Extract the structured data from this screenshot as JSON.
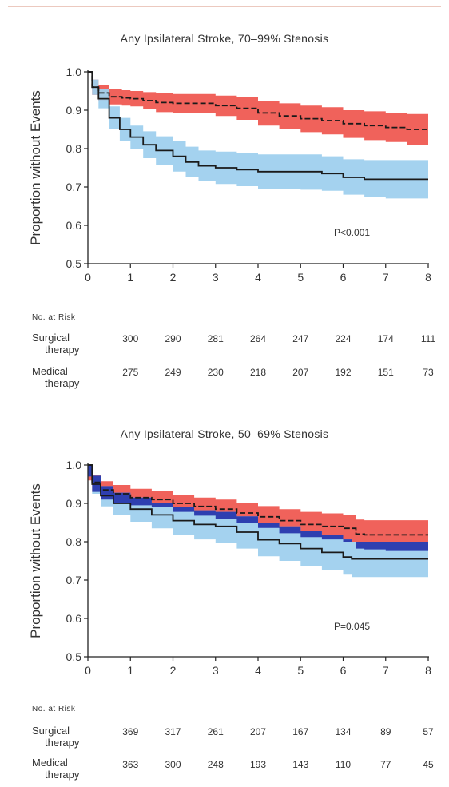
{
  "chart_data": [
    {
      "type": "line",
      "title": "Any Ipsilateral Stroke, 70–99% Stenosis",
      "ylabel": "Proportion without Events",
      "xlabel": "",
      "xlim": [
        0,
        8
      ],
      "ylim": [
        0.5,
        1.0
      ],
      "x_ticks": [
        "0",
        "1",
        "2",
        "3",
        "4",
        "5",
        "6",
        "7",
        "8"
      ],
      "y_ticks": [
        "0.5",
        "0.6",
        "0.7",
        "0.8",
        "0.9",
        "1.0"
      ],
      "annotation": "P<0.001",
      "series": [
        {
          "style": "dashed",
          "color": "#1a1a1a",
          "band_color": "#ef5a52",
          "x": [
            0,
            0.1,
            0.25,
            0.5,
            0.8,
            1.0,
            1.3,
            1.6,
            2.0,
            2.5,
            3.0,
            3.5,
            4.0,
            4.5,
            5.0,
            5.5,
            6.0,
            6.5,
            7.0,
            7.5,
            8.0
          ],
          "y": [
            1.0,
            0.96,
            0.945,
            0.935,
            0.932,
            0.93,
            0.925,
            0.92,
            0.918,
            0.918,
            0.912,
            0.905,
            0.893,
            0.885,
            0.878,
            0.873,
            0.865,
            0.86,
            0.855,
            0.85,
            0.85
          ],
          "lower": [
            1.0,
            0.94,
            0.925,
            0.915,
            0.912,
            0.91,
            0.902,
            0.895,
            0.893,
            0.892,
            0.885,
            0.875,
            0.86,
            0.85,
            0.843,
            0.837,
            0.828,
            0.822,
            0.817,
            0.81,
            0.81
          ],
          "upper": [
            1.0,
            0.98,
            0.965,
            0.955,
            0.952,
            0.95,
            0.947,
            0.944,
            0.942,
            0.942,
            0.938,
            0.934,
            0.924,
            0.918,
            0.912,
            0.908,
            0.9,
            0.897,
            0.893,
            0.89,
            0.89
          ]
        },
        {
          "style": "solid",
          "color": "#1a1a1a",
          "band_color": "#9fd0ee",
          "x": [
            0,
            0.1,
            0.25,
            0.5,
            0.75,
            1.0,
            1.3,
            1.6,
            2.0,
            2.3,
            2.6,
            3.0,
            3.5,
            4.0,
            4.5,
            5.0,
            5.5,
            6.0,
            6.5,
            7.0,
            7.5,
            8.0
          ],
          "y": [
            1.0,
            0.96,
            0.93,
            0.88,
            0.85,
            0.83,
            0.81,
            0.795,
            0.78,
            0.765,
            0.755,
            0.75,
            0.745,
            0.74,
            0.74,
            0.74,
            0.735,
            0.725,
            0.72,
            0.72,
            0.72,
            0.72
          ],
          "lower": [
            1.0,
            0.94,
            0.905,
            0.85,
            0.82,
            0.8,
            0.775,
            0.758,
            0.74,
            0.725,
            0.715,
            0.708,
            0.702,
            0.695,
            0.694,
            0.693,
            0.69,
            0.68,
            0.675,
            0.67,
            0.67,
            0.67
          ],
          "upper": [
            1.0,
            0.98,
            0.955,
            0.91,
            0.88,
            0.86,
            0.845,
            0.832,
            0.82,
            0.805,
            0.795,
            0.792,
            0.788,
            0.785,
            0.785,
            0.785,
            0.78,
            0.772,
            0.77,
            0.77,
            0.77,
            0.77
          ]
        }
      ],
      "at_risk": {
        "header": "No. at Risk",
        "rows": [
          {
            "label_1": "Surgical",
            "label_2": "therapy",
            "values": [
              "300",
              "290",
              "281",
              "264",
              "247",
              "224",
              "174",
              "111"
            ]
          },
          {
            "label_1": "Medical",
            "label_2": "therapy",
            "values": [
              "275",
              "249",
              "230",
              "218",
              "207",
              "192",
              "151",
              "73"
            ]
          }
        ]
      }
    },
    {
      "type": "line",
      "title": "Any Ipsilateral Stroke, 50–69% Stenosis",
      "ylabel": "Proportion without Events",
      "xlabel": "",
      "xlim": [
        0,
        8
      ],
      "ylim": [
        0.5,
        1.0
      ],
      "x_ticks": [
        "0",
        "1",
        "2",
        "3",
        "4",
        "5",
        "6",
        "7",
        "8"
      ],
      "y_ticks": [
        "0.5",
        "0.6",
        "0.7",
        "0.8",
        "0.9",
        "1.0"
      ],
      "annotation": "P=0.045",
      "series": [
        {
          "style": "dashed",
          "color": "#1a1a1a",
          "band_color": "#ef5a52",
          "x": [
            0,
            0.1,
            0.3,
            0.6,
            1.0,
            1.5,
            2.0,
            2.5,
            3.0,
            3.5,
            4.0,
            4.5,
            5.0,
            5.5,
            6.0,
            6.3,
            6.5,
            7.0,
            7.5,
            8.0
          ],
          "y": [
            1.0,
            0.955,
            0.935,
            0.925,
            0.915,
            0.91,
            0.9,
            0.892,
            0.885,
            0.875,
            0.865,
            0.855,
            0.845,
            0.84,
            0.835,
            0.82,
            0.818,
            0.818,
            0.818,
            0.818
          ],
          "lower": [
            0.96,
            0.93,
            0.91,
            0.902,
            0.895,
            0.89,
            0.878,
            0.868,
            0.86,
            0.848,
            0.836,
            0.822,
            0.812,
            0.806,
            0.8,
            0.782,
            0.78,
            0.778,
            0.778,
            0.778
          ],
          "upper": [
            1.0,
            0.975,
            0.958,
            0.948,
            0.938,
            0.932,
            0.922,
            0.915,
            0.91,
            0.902,
            0.893,
            0.885,
            0.878,
            0.874,
            0.87,
            0.858,
            0.856,
            0.856,
            0.856,
            0.856
          ]
        },
        {
          "style": "solid",
          "color": "#1a1a1a",
          "band_color": "#9fd0ee",
          "x": [
            0,
            0.1,
            0.3,
            0.6,
            1.0,
            1.5,
            2.0,
            2.5,
            3.0,
            3.5,
            4.0,
            4.5,
            5.0,
            5.5,
            6.0,
            6.2,
            6.5,
            7.0,
            7.5,
            8.0
          ],
          "y": [
            1.0,
            0.95,
            0.92,
            0.9,
            0.885,
            0.87,
            0.855,
            0.845,
            0.84,
            0.825,
            0.805,
            0.795,
            0.782,
            0.772,
            0.76,
            0.755,
            0.755,
            0.755,
            0.755,
            0.755
          ],
          "lower": [
            0.97,
            0.925,
            0.892,
            0.87,
            0.852,
            0.835,
            0.818,
            0.806,
            0.798,
            0.782,
            0.762,
            0.75,
            0.737,
            0.726,
            0.714,
            0.708,
            0.708,
            0.708,
            0.708,
            0.708
          ],
          "upper": [
            1.0,
            0.972,
            0.945,
            0.928,
            0.915,
            0.902,
            0.89,
            0.882,
            0.878,
            0.866,
            0.848,
            0.84,
            0.828,
            0.818,
            0.806,
            0.8,
            0.8,
            0.8,
            0.8,
            0.8
          ]
        }
      ],
      "overlap_color": "#2e3fb0",
      "at_risk": {
        "header": "No. at Risk",
        "rows": [
          {
            "label_1": "Surgical",
            "label_2": "therapy",
            "values": [
              "369",
              "317",
              "261",
              "207",
              "167",
              "134",
              "89",
              "57"
            ]
          },
          {
            "label_1": "Medical",
            "label_2": "therapy",
            "values": [
              "363",
              "300",
              "248",
              "193",
              "143",
              "110",
              "77",
              "45"
            ]
          }
        ]
      }
    }
  ]
}
